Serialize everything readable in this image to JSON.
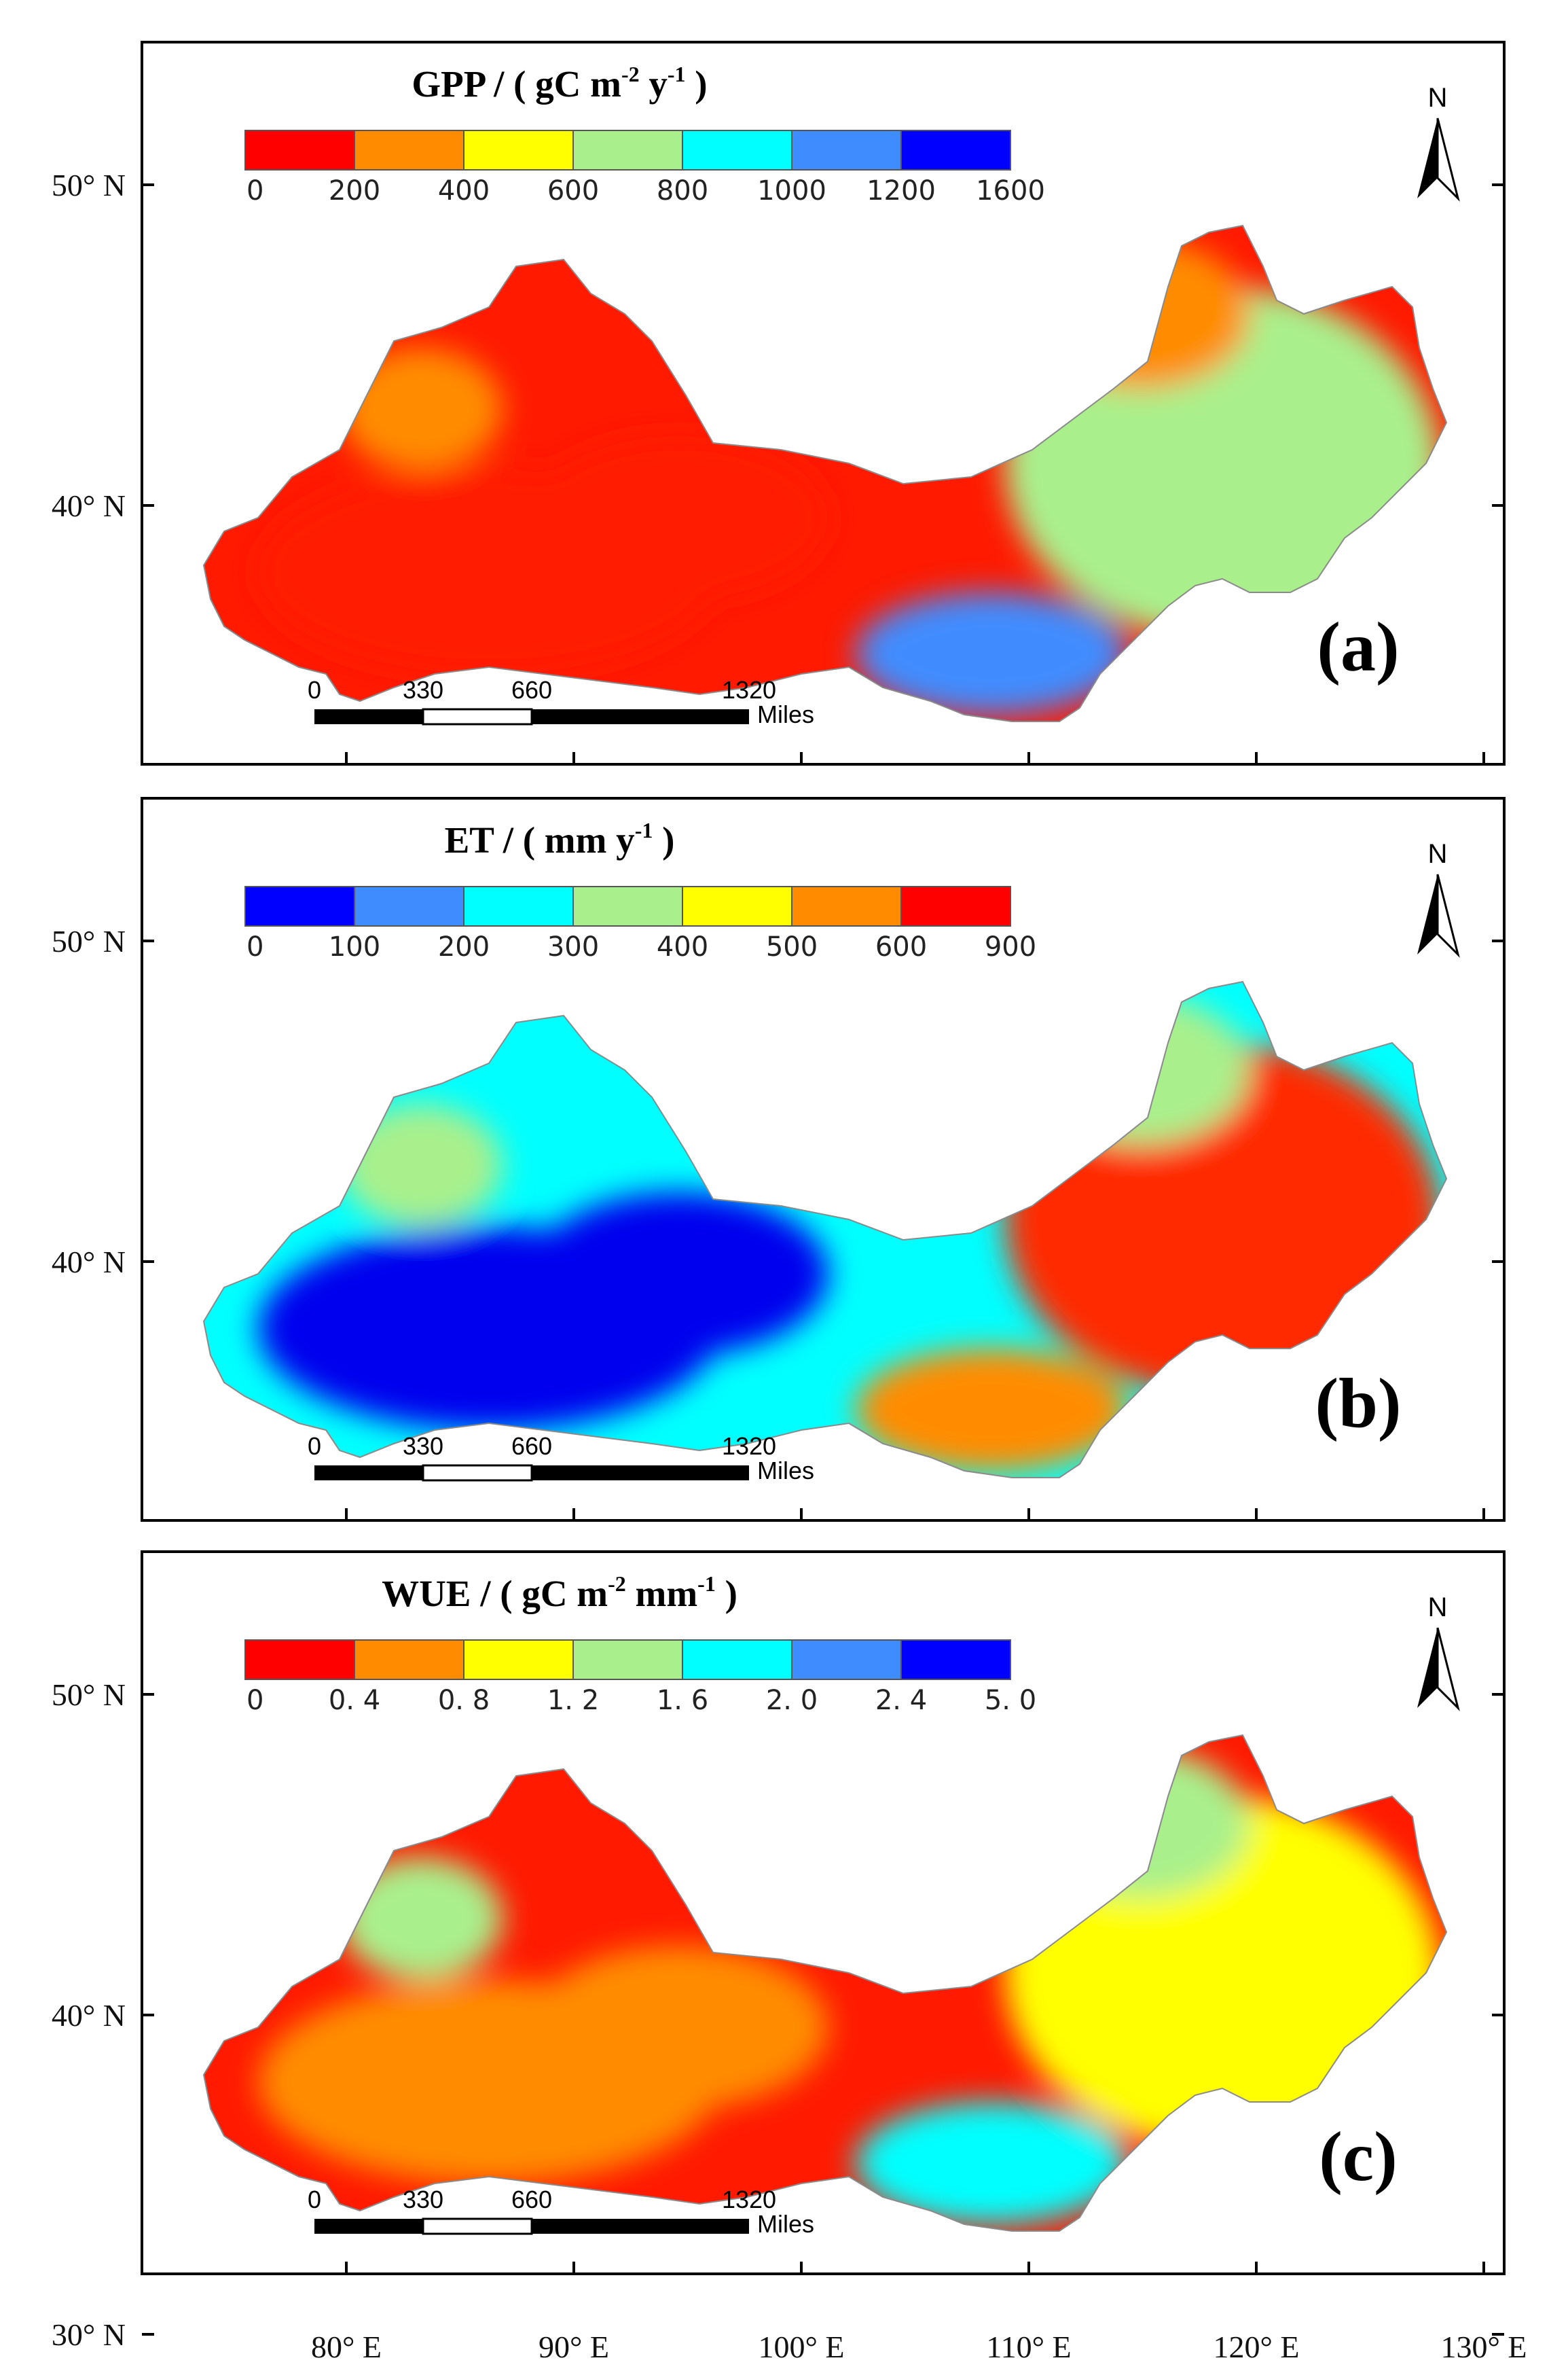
{
  "figure": {
    "latitude_labels": [
      "50° N",
      "40° N",
      "30° N"
    ],
    "longitude_labels": [
      "80° E",
      "90° E",
      "100° E",
      "110° E",
      "120° E",
      "130° E"
    ],
    "north_label": "N",
    "scale_bar": {
      "ticks": [
        "0",
        "330",
        "660",
        "1320"
      ],
      "unit": "Miles"
    }
  },
  "panels": [
    {
      "id": "a",
      "label": "(a)",
      "title": {
        "main": "GPP / ( gC m",
        "sup1": "-2",
        "mid": " y",
        "sup2": "-1",
        "end": " )"
      },
      "legend_ticks": [
        "0",
        "200",
        "400",
        "600",
        "800",
        "1000",
        "1200",
        "1600"
      ],
      "legend_colors": [
        "#ff0000",
        "#ff8c00",
        "#ffff00",
        "#a9f08c",
        "#00ffff",
        "#3f8cff",
        "#0000ff"
      ],
      "map_colors": {
        "west": "#ff1a00",
        "center": "#ff1a00",
        "east": "#a9f08c",
        "east_edge": "#ff8c00",
        "south_edge": "#3f8cff"
      }
    },
    {
      "id": "b",
      "label": "(b)",
      "title": {
        "main": "ET / ( mm y",
        "sup1": "-1",
        "mid": " )",
        "sup2": "",
        "end": ""
      },
      "legend_ticks": [
        "0",
        "100",
        "200",
        "300",
        "400",
        "500",
        "600",
        "900"
      ],
      "legend_colors": [
        "#0000ff",
        "#3f8cff",
        "#00ffff",
        "#a9f08c",
        "#ffff00",
        "#ff8c00",
        "#ff0000"
      ],
      "map_colors": {
        "west": "#00ffff",
        "center": "#0000ee",
        "east": "#ff2a00",
        "east_edge": "#a9f08c",
        "south_edge": "#ff8c00"
      }
    },
    {
      "id": "c",
      "label": "(c)",
      "title": {
        "main": "WUE / ( gC m",
        "sup1": "-2",
        "mid": " mm",
        "sup2": "-1",
        "end": " )"
      },
      "legend_ticks": [
        "0",
        "0. 4",
        "0. 8",
        "1. 2",
        "1. 6",
        "2. 0",
        "2. 4",
        "5. 0"
      ],
      "legend_colors": [
        "#ff0000",
        "#ff8c00",
        "#ffff00",
        "#a9f08c",
        "#00ffff",
        "#3f8cff",
        "#0000ff"
      ],
      "map_colors": {
        "west": "#ff1a00",
        "center": "#ff8c00",
        "east": "#ffff00",
        "east_edge": "#a9f08c",
        "south_edge": "#00ffff"
      }
    }
  ]
}
